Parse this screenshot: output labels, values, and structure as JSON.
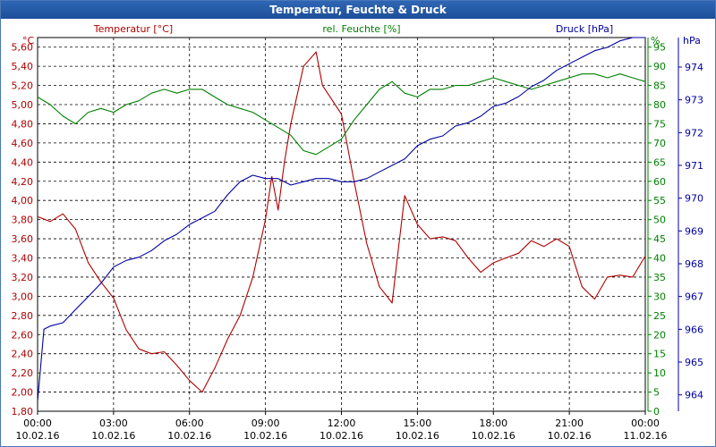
{
  "window": {
    "title": "Temperatur, Feuchte & Druck"
  },
  "colors": {
    "temperature": "#b00000",
    "humidity": "#008000",
    "pressure": "#0000a0",
    "grid": "#000000",
    "axis_text": "#000000"
  },
  "chart_data": {
    "type": "line",
    "title": "Temperatur, Feuchte & Druck",
    "x_ticks": [
      {
        "time": "00:00",
        "date": "10.02.16"
      },
      {
        "time": "03:00",
        "date": "10.02.16"
      },
      {
        "time": "06:00",
        "date": "10.02.16"
      },
      {
        "time": "09:00",
        "date": "10.02.16"
      },
      {
        "time": "12:00",
        "date": "10.02.16"
      },
      {
        "time": "15:00",
        "date": "10.02.16"
      },
      {
        "time": "18:00",
        "date": "10.02.16"
      },
      {
        "time": "21:00",
        "date": "10.02.16"
      },
      {
        "time": "00:00",
        "date": "11.02.16"
      }
    ],
    "x_range_hours": [
      0,
      24
    ],
    "axes": {
      "temperature": {
        "label": "Temperatur [°C]",
        "unit": "°C",
        "range": [
          1.8,
          5.7
        ],
        "ticks": [
          "1,80",
          "2,00",
          "2,20",
          "2,40",
          "2,60",
          "2,80",
          "3,00",
          "3,20",
          "3,40",
          "3,60",
          "3,80",
          "4,00",
          "4,20",
          "4,40",
          "4,60",
          "4,80",
          "5,00",
          "5,20",
          "5,40",
          "5,60"
        ]
      },
      "humidity": {
        "label": "rel. Feuchte [%]",
        "unit": "%",
        "range": [
          0,
          97.5
        ],
        "ticks": [
          "0",
          "5",
          "10",
          "15",
          "20",
          "25",
          "30",
          "35",
          "40",
          "45",
          "50",
          "55",
          "60",
          "65",
          "70",
          "75",
          "80",
          "85",
          "90",
          "95"
        ]
      },
      "pressure": {
        "label": "Druck [hPa]",
        "unit": "hPa",
        "range": [
          963.5,
          974.9
        ],
        "ticks": [
          "964",
          "965",
          "966",
          "967",
          "968",
          "969",
          "970",
          "971",
          "972",
          "973",
          "974"
        ]
      }
    },
    "series": [
      {
        "name": "Temperatur",
        "axis": "temperature",
        "x": [
          0,
          0.5,
          1,
          1.5,
          2,
          2.5,
          3,
          3.5,
          4,
          4.5,
          5,
          5.5,
          6,
          6.5,
          7,
          7.5,
          8,
          8.5,
          9,
          9.25,
          9.5,
          9.75,
          10,
          10.5,
          11,
          11.25,
          11.5,
          12,
          12.5,
          13,
          13.5,
          14,
          14.25,
          14.5,
          15,
          15.5,
          16,
          16.5,
          17,
          17.5,
          18,
          18.5,
          19,
          19.5,
          20,
          20.5,
          21,
          21.5,
          22,
          22.5,
          23,
          23.5,
          24
        ],
        "values": [
          3.83,
          3.78,
          3.86,
          3.7,
          3.35,
          3.15,
          2.98,
          2.65,
          2.45,
          2.4,
          2.42,
          2.28,
          2.12,
          2.0,
          2.25,
          2.55,
          2.8,
          3.2,
          3.8,
          4.25,
          3.9,
          4.4,
          4.8,
          5.4,
          5.55,
          5.2,
          5.1,
          4.9,
          4.2,
          3.55,
          3.1,
          2.93,
          3.5,
          4.05,
          3.75,
          3.6,
          3.62,
          3.58,
          3.4,
          3.25,
          3.35,
          3.4,
          3.45,
          3.58,
          3.52,
          3.6,
          3.52,
          3.1,
          2.97,
          3.2,
          3.22,
          3.2,
          3.42
        ]
      },
      {
        "name": "rel. Feuchte",
        "axis": "humidity",
        "x": [
          0,
          0.5,
          1,
          1.5,
          2,
          2.5,
          3,
          3.5,
          4,
          4.5,
          5,
          5.5,
          6,
          6.5,
          7,
          7.5,
          8,
          8.5,
          9,
          9.5,
          10,
          10.5,
          11,
          11.5,
          12,
          12.5,
          13,
          13.5,
          14,
          14.5,
          15,
          15.5,
          16,
          16.5,
          17,
          17.5,
          18,
          18.5,
          19,
          19.5,
          20,
          20.5,
          21,
          21.5,
          22,
          22.5,
          23,
          23.5,
          24
        ],
        "values": [
          82,
          80,
          77,
          75,
          78,
          79,
          78,
          80,
          81,
          83,
          84,
          83,
          84,
          84,
          82,
          80,
          79,
          78,
          76,
          74,
          72,
          68,
          67,
          69,
          71,
          76,
          80,
          84,
          86,
          83,
          82,
          84,
          84,
          85,
          85,
          86,
          87,
          86,
          85,
          84,
          85,
          86,
          87,
          88,
          88,
          87,
          88,
          87,
          86
        ]
      },
      {
        "name": "Druck",
        "axis": "pressure",
        "x": [
          0,
          0.25,
          0.5,
          1,
          1.5,
          2,
          2.5,
          3,
          3.5,
          4,
          4.5,
          5,
          5.5,
          6,
          6.5,
          7,
          7.5,
          8,
          8.5,
          9,
          9.5,
          10,
          10.5,
          11,
          11.5,
          12,
          12.5,
          13,
          13.5,
          14,
          14.5,
          15,
          15.5,
          16,
          16.5,
          17,
          17.5,
          18,
          18.5,
          19,
          19.5,
          20,
          20.5,
          21,
          21.5,
          22,
          22.5,
          23,
          23.5,
          24
        ],
        "values": [
          963.8,
          966.0,
          966.1,
          966.2,
          966.6,
          967.0,
          967.4,
          967.9,
          968.1,
          968.2,
          968.4,
          968.7,
          968.9,
          969.2,
          969.4,
          969.6,
          970.1,
          970.5,
          970.7,
          970.6,
          970.6,
          970.4,
          970.5,
          970.6,
          970.6,
          970.5,
          970.5,
          970.6,
          970.8,
          971.0,
          971.2,
          971.6,
          971.8,
          971.9,
          972.2,
          972.3,
          972.5,
          972.8,
          972.9,
          973.1,
          973.4,
          973.6,
          973.9,
          974.1,
          974.3,
          974.5,
          974.6,
          974.8,
          975.0,
          975.1
        ]
      }
    ]
  }
}
